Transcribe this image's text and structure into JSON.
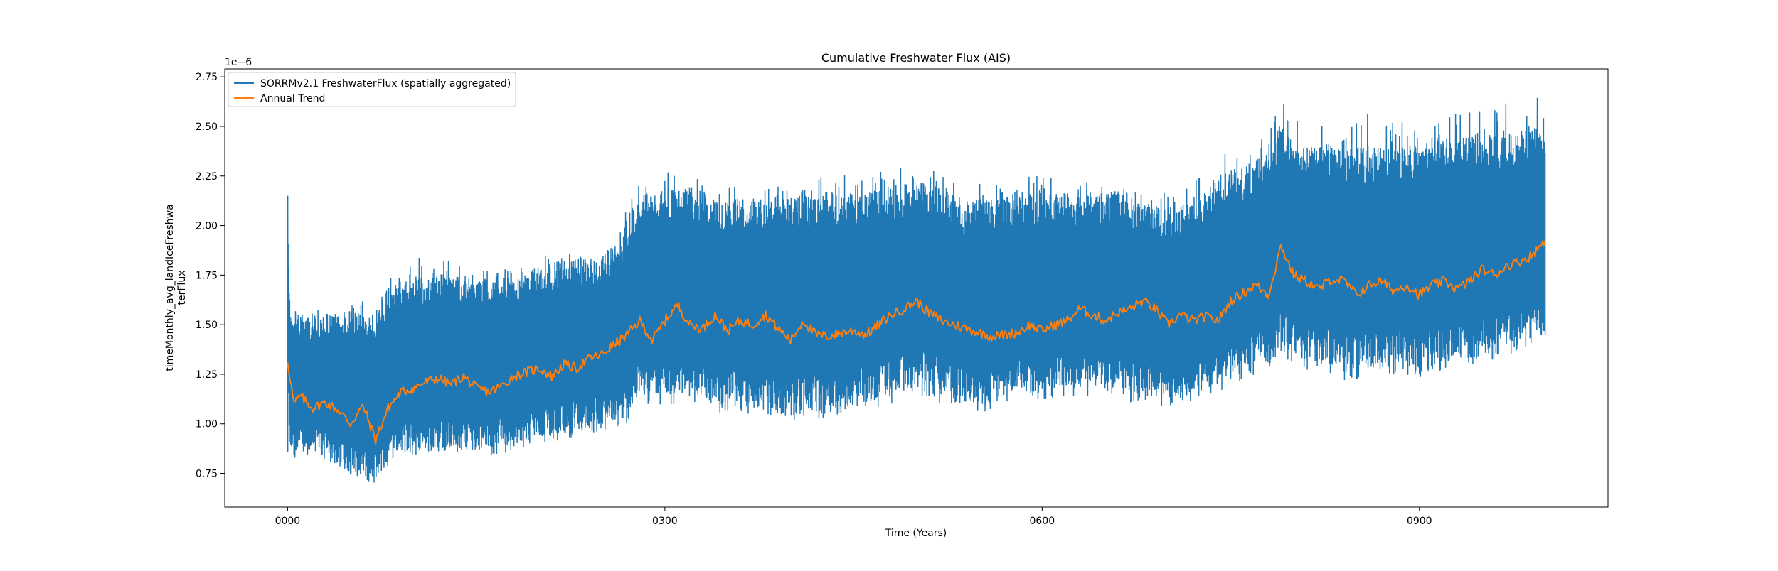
{
  "chart_data": {
    "type": "line",
    "title": "Cumulative Freshwater Flux (AIS)",
    "xlabel": "Time (Years)",
    "ylabel_lines": [
      "timeMonthly_avg_landIceFreshwa",
      "terFlux"
    ],
    "y_offset_text": "1e−6",
    "y_scale_multiplier": 1e-06,
    "xlim": [
      -50,
      1050
    ],
    "ylim": [
      0.58,
      2.79
    ],
    "x_ticks": [
      {
        "value": 0,
        "label": "0000"
      },
      {
        "value": 300,
        "label": "0300"
      },
      {
        "value": 600,
        "label": "0600"
      },
      {
        "value": 900,
        "label": "0900"
      }
    ],
    "y_ticks": [
      {
        "value": 0.75,
        "label": "0.75"
      },
      {
        "value": 1.0,
        "label": "1.00"
      },
      {
        "value": 1.25,
        "label": "1.25"
      },
      {
        "value": 1.5,
        "label": "1.50"
      },
      {
        "value": 1.75,
        "label": "1.75"
      },
      {
        "value": 2.0,
        "label": "2.00"
      },
      {
        "value": 2.25,
        "label": "2.25"
      },
      {
        "value": 2.5,
        "label": "2.50"
      },
      {
        "value": 2.75,
        "label": "2.75"
      }
    ],
    "grid": false,
    "legend_position": "upper-left",
    "series": [
      {
        "name": "SORRMv2.1 FreshwaterFlux (spatially aggregated)",
        "color": "#1f77b4",
        "kind": "monthly",
        "x": [
          0,
          2,
          5,
          10,
          20,
          30,
          40,
          50,
          60,
          65,
          70,
          80,
          90,
          100,
          120,
          140,
          160,
          180,
          200,
          220,
          240,
          260,
          270,
          280,
          300,
          320,
          340,
          360,
          380,
          400,
          420,
          440,
          460,
          480,
          500,
          520,
          540,
          560,
          580,
          600,
          620,
          640,
          660,
          680,
          700,
          720,
          740,
          760,
          780,
          790,
          800,
          820,
          840,
          860,
          880,
          900,
          920,
          940,
          960,
          980,
          1000
        ],
        "lower": [
          1.15,
          0.85,
          0.83,
          0.86,
          0.86,
          0.85,
          0.8,
          0.75,
          0.72,
          0.7,
          0.73,
          0.82,
          0.88,
          0.86,
          0.88,
          0.87,
          0.87,
          0.89,
          0.93,
          0.95,
          0.97,
          1.0,
          1.03,
          1.15,
          1.14,
          1.15,
          1.1,
          1.09,
          1.07,
          1.04,
          1.06,
          1.08,
          1.1,
          1.16,
          1.18,
          1.16,
          1.1,
          1.13,
          1.14,
          1.17,
          1.19,
          1.18,
          1.19,
          1.14,
          1.13,
          1.15,
          1.2,
          1.26,
          1.3,
          1.4,
          1.34,
          1.3,
          1.28,
          1.26,
          1.3,
          1.28,
          1.31,
          1.33,
          1.36,
          1.4,
          1.47
        ],
        "upper": [
          2.15,
          1.55,
          1.56,
          1.55,
          1.55,
          1.55,
          1.55,
          1.57,
          1.6,
          1.55,
          1.57,
          1.68,
          1.72,
          1.74,
          1.76,
          1.75,
          1.73,
          1.75,
          1.79,
          1.83,
          1.85,
          1.9,
          2.05,
          2.15,
          2.18,
          2.2,
          2.15,
          2.14,
          2.12,
          2.15,
          2.16,
          2.18,
          2.17,
          2.2,
          2.23,
          2.19,
          2.12,
          2.16,
          2.18,
          2.15,
          2.17,
          2.16,
          2.18,
          2.11,
          2.1,
          2.13,
          2.26,
          2.31,
          2.37,
          2.52,
          2.44,
          2.4,
          2.38,
          2.4,
          2.43,
          2.41,
          2.44,
          2.46,
          2.47,
          2.5,
          2.52
        ],
        "spike_max": [
          2.15,
          1.6,
          1.6,
          1.58,
          1.59,
          1.58,
          1.58,
          1.6,
          1.62,
          1.58,
          1.6,
          1.75,
          1.8,
          1.84,
          1.86,
          1.8,
          1.78,
          1.8,
          1.84,
          1.88,
          1.92,
          2.0,
          2.18,
          2.22,
          2.28,
          2.25,
          2.22,
          2.2,
          2.19,
          2.22,
          2.24,
          2.27,
          2.23,
          2.33,
          2.29,
          2.27,
          2.2,
          2.22,
          2.24,
          2.26,
          2.23,
          2.22,
          2.25,
          2.15,
          2.17,
          2.23,
          2.35,
          2.4,
          2.5,
          2.65,
          2.55,
          2.52,
          2.48,
          2.58,
          2.56,
          2.5,
          2.55,
          2.58,
          2.6,
          2.65,
          2.68
        ],
        "spike_min": [
          0.86,
          0.82,
          0.81,
          0.83,
          0.84,
          0.82,
          0.79,
          0.74,
          0.7,
          0.68,
          0.71,
          0.78,
          0.86,
          0.84,
          0.86,
          0.85,
          0.84,
          0.86,
          0.9,
          0.92,
          0.95,
          0.98,
          1.0,
          1.08,
          1.09,
          1.1,
          1.05,
          1.04,
          1.02,
          1.0,
          1.02,
          1.04,
          1.06,
          1.1,
          1.13,
          1.1,
          1.06,
          1.06,
          1.09,
          1.12,
          1.14,
          1.12,
          1.13,
          1.08,
          1.08,
          1.1,
          1.16,
          1.22,
          1.25,
          1.34,
          1.3,
          1.24,
          1.22,
          1.21,
          1.25,
          1.23,
          1.26,
          1.28,
          1.32,
          1.36,
          1.44
        ]
      },
      {
        "name": "Annual Trend",
        "color": "#ff7f0e",
        "kind": "annual",
        "x": [
          0,
          5,
          10,
          20,
          30,
          40,
          50,
          60,
          70,
          80,
          90,
          100,
          110,
          120,
          130,
          140,
          150,
          160,
          170,
          180,
          190,
          200,
          210,
          220,
          230,
          240,
          250,
          260,
          270,
          280,
          290,
          300,
          310,
          320,
          330,
          340,
          350,
          360,
          370,
          380,
          390,
          400,
          410,
          420,
          430,
          440,
          450,
          460,
          470,
          480,
          490,
          500,
          510,
          520,
          530,
          540,
          550,
          560,
          570,
          580,
          590,
          600,
          610,
          620,
          630,
          640,
          650,
          660,
          670,
          680,
          690,
          700,
          710,
          720,
          730,
          740,
          750,
          760,
          770,
          780,
          790,
          800,
          810,
          820,
          830,
          840,
          850,
          860,
          870,
          880,
          890,
          900,
          910,
          920,
          930,
          940,
          950,
          960,
          970,
          980,
          990,
          1000
        ],
        "values": [
          1.32,
          1.1,
          1.14,
          1.08,
          1.11,
          1.07,
          1.0,
          1.09,
          0.92,
          1.08,
          1.16,
          1.18,
          1.21,
          1.23,
          1.2,
          1.24,
          1.18,
          1.16,
          1.19,
          1.24,
          1.26,
          1.28,
          1.24,
          1.3,
          1.28,
          1.33,
          1.35,
          1.4,
          1.45,
          1.52,
          1.42,
          1.52,
          1.6,
          1.5,
          1.48,
          1.55,
          1.47,
          1.52,
          1.5,
          1.55,
          1.48,
          1.42,
          1.52,
          1.45,
          1.44,
          1.46,
          1.47,
          1.45,
          1.5,
          1.55,
          1.58,
          1.62,
          1.56,
          1.52,
          1.5,
          1.48,
          1.46,
          1.44,
          1.45,
          1.46,
          1.5,
          1.47,
          1.5,
          1.52,
          1.58,
          1.55,
          1.52,
          1.56,
          1.58,
          1.62,
          1.58,
          1.5,
          1.55,
          1.52,
          1.54,
          1.52,
          1.62,
          1.66,
          1.7,
          1.65,
          1.9,
          1.75,
          1.72,
          1.68,
          1.73,
          1.72,
          1.65,
          1.7,
          1.72,
          1.67,
          1.7,
          1.65,
          1.7,
          1.72,
          1.68,
          1.72,
          1.78,
          1.75,
          1.8,
          1.82,
          1.85,
          1.93
        ]
      }
    ]
  }
}
